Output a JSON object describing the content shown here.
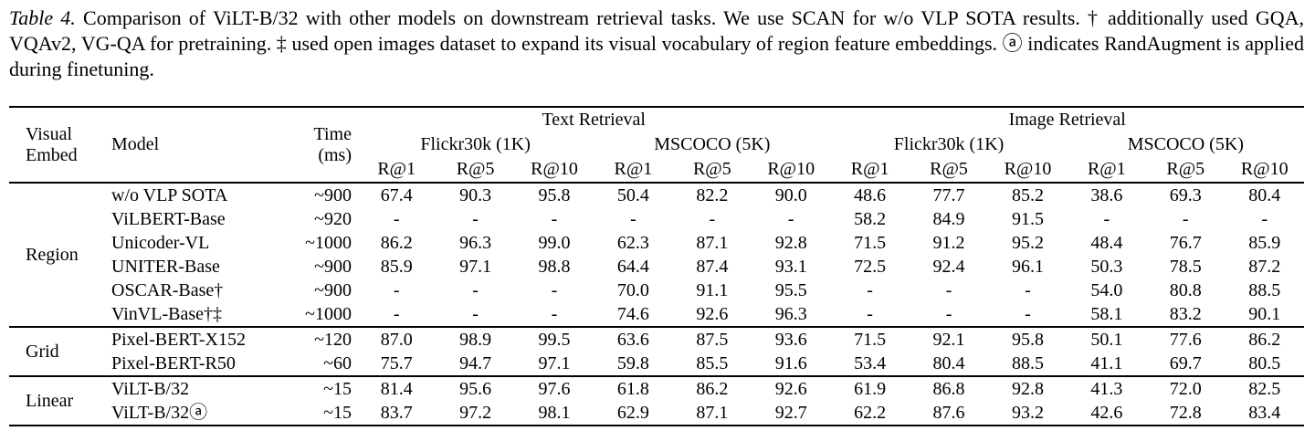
{
  "caption": {
    "label": "Table 4.",
    "text": "Comparison of ViLT-B/32 with other models on downstream retrieval tasks. We use SCAN for w/o VLP SOTA results. † additionally used GQA, VQAv2, VG-QA for pretraining. ‡ used open images dataset to expand its visual vocabulary of region feature embeddings. ⓐ indicates RandAugment is applied during finetuning."
  },
  "table": {
    "header": {
      "visual_embed": "Visual\nEmbed",
      "model": "Model",
      "time": "Time\n(ms)",
      "top_groups": [
        {
          "label": "Text Retrieval"
        },
        {
          "label": "Image Retrieval"
        }
      ],
      "subgroups": [
        "Flickr30k (1K)",
        "MSCOCO (5K)",
        "Flickr30k (1K)",
        "MSCOCO (5K)"
      ],
      "metrics": [
        "R@1",
        "R@5",
        "R@10"
      ]
    },
    "groups": [
      {
        "embed": "Region",
        "rows": [
          {
            "model": "w/o VLP SOTA",
            "time": "~900",
            "values": [
              "67.4",
              "90.3",
              "95.8",
              "50.4",
              "82.2",
              "90.0",
              "48.6",
              "77.7",
              "85.2",
              "38.6",
              "69.3",
              "80.4"
            ]
          },
          {
            "model": "ViLBERT-Base",
            "time": "~920",
            "values": [
              "-",
              "-",
              "-",
              "-",
              "-",
              "-",
              "58.2",
              "84.9",
              "91.5",
              "-",
              "-",
              "-"
            ]
          },
          {
            "model": "Unicoder-VL",
            "time": "~1000",
            "values": [
              "86.2",
              "96.3",
              "99.0",
              "62.3",
              "87.1",
              "92.8",
              "71.5",
              "91.2",
              "95.2",
              "48.4",
              "76.7",
              "85.9"
            ]
          },
          {
            "model": "UNITER-Base",
            "time": "~900",
            "values": [
              "85.9",
              "97.1",
              "98.8",
              "64.4",
              "87.4",
              "93.1",
              "72.5",
              "92.4",
              "96.1",
              "50.3",
              "78.5",
              "87.2"
            ]
          },
          {
            "model": "OSCAR-Base†",
            "time": "~900",
            "values": [
              "-",
              "-",
              "-",
              "70.0",
              "91.1",
              "95.5",
              "-",
              "-",
              "-",
              "54.0",
              "80.8",
              "88.5"
            ]
          },
          {
            "model": "VinVL-Base†‡",
            "time": "~1000",
            "values": [
              "-",
              "-",
              "-",
              "74.6",
              "92.6",
              "96.3",
              "-",
              "-",
              "-",
              "58.1",
              "83.2",
              "90.1"
            ]
          }
        ]
      },
      {
        "embed": "Grid",
        "rows": [
          {
            "model": "Pixel-BERT-X152",
            "time": "~120",
            "values": [
              "87.0",
              "98.9",
              "99.5",
              "63.6",
              "87.5",
              "93.6",
              "71.5",
              "92.1",
              "95.8",
              "50.1",
              "77.6",
              "86.2"
            ]
          },
          {
            "model": "Pixel-BERT-R50",
            "time": "~60",
            "values": [
              "75.7",
              "94.7",
              "97.1",
              "59.8",
              "85.5",
              "91.6",
              "53.4",
              "80.4",
              "88.5",
              "41.1",
              "69.7",
              "80.5"
            ]
          }
        ]
      },
      {
        "embed": "Linear",
        "rows": [
          {
            "model": "ViLT-B/32",
            "time": "~15",
            "values": [
              "81.4",
              "95.6",
              "97.6",
              "61.8",
              "86.2",
              "92.6",
              "61.9",
              "86.8",
              "92.8",
              "41.3",
              "72.0",
              "82.5"
            ]
          },
          {
            "model": "ViLT-B/32ⓐ",
            "time": "~15",
            "values": [
              "83.7",
              "97.2",
              "98.1",
              "62.9",
              "87.1",
              "92.7",
              "62.2",
              "87.6",
              "93.2",
              "42.6",
              "72.8",
              "83.4"
            ]
          }
        ]
      }
    ]
  }
}
